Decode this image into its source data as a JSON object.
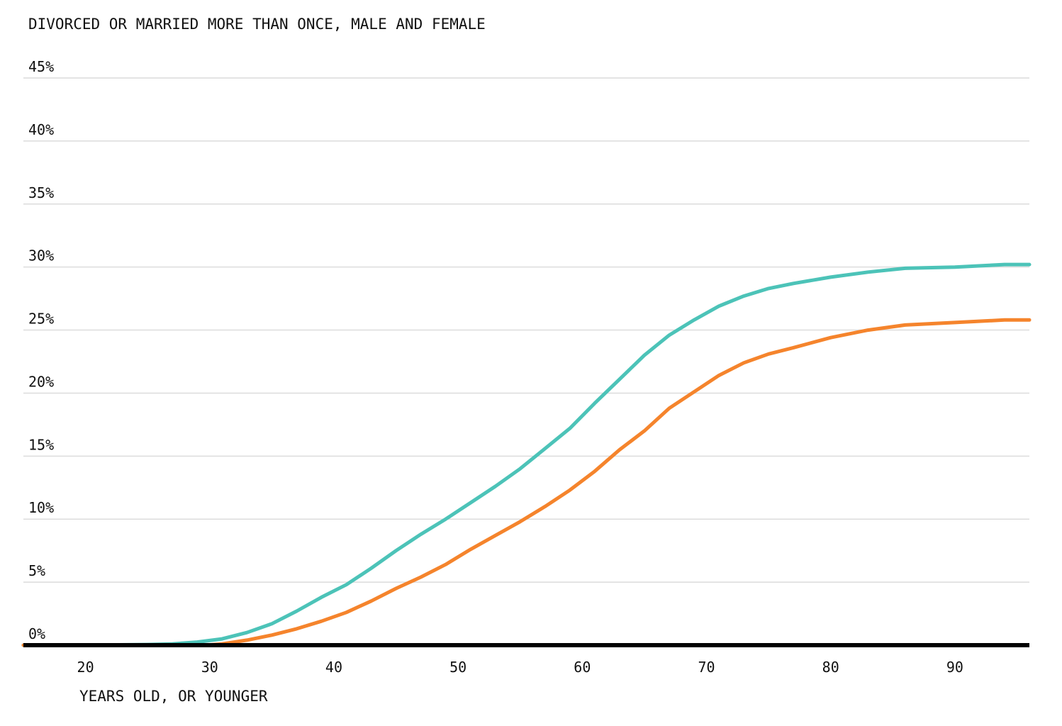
{
  "chart_data": {
    "type": "line",
    "title": "DIVORCED OR MARRIED MORE THAN ONCE, MALE AND FEMALE",
    "xlabel": "YEARS OLD, OR YOUNGER",
    "ylabel": "",
    "xlim": [
      15,
      96
    ],
    "ylim": [
      0,
      45
    ],
    "x_ticks": [
      20,
      30,
      40,
      50,
      60,
      70,
      80,
      90
    ],
    "x_tick_labels": [
      "20",
      "30",
      "40",
      "50",
      "60",
      "70",
      "80",
      "90"
    ],
    "y_ticks": [
      0,
      5,
      10,
      15,
      20,
      25,
      30,
      35,
      40,
      45
    ],
    "y_tick_labels": [
      "0%",
      "5%",
      "10%",
      "15%",
      "20%",
      "25%",
      "30%",
      "35%",
      "40%",
      "45%"
    ],
    "grid": true,
    "legend": "none",
    "series": [
      {
        "color": "#4cc3b8",
        "x": [
          15,
          20,
          25,
          27,
          29,
          31,
          33,
          35,
          37,
          39,
          41,
          43,
          45,
          47,
          49,
          51,
          53,
          55,
          57,
          59,
          61,
          63,
          65,
          67,
          69,
          71,
          73,
          75,
          77,
          80,
          83,
          86,
          90,
          94,
          96
        ],
        "y": [
          0,
          0,
          0.05,
          0.1,
          0.25,
          0.5,
          1.0,
          1.7,
          2.7,
          3.8,
          4.8,
          6.1,
          7.5,
          8.8,
          10.0,
          11.3,
          12.6,
          14.0,
          15.6,
          17.2,
          19.2,
          21.1,
          23.0,
          24.6,
          25.8,
          26.9,
          27.7,
          28.3,
          28.7,
          29.2,
          29.6,
          29.9,
          30.0,
          30.2,
          30.2
        ]
      },
      {
        "color": "#f5842c",
        "x": [
          15,
          20,
          25,
          30,
          31,
          33,
          35,
          37,
          39,
          41,
          43,
          45,
          47,
          49,
          51,
          53,
          55,
          57,
          59,
          61,
          63,
          65,
          67,
          69,
          71,
          73,
          75,
          77,
          80,
          83,
          86,
          90,
          94,
          96
        ],
        "y": [
          0,
          0,
          0,
          0.02,
          0.1,
          0.4,
          0.8,
          1.3,
          1.9,
          2.6,
          3.5,
          4.5,
          5.4,
          6.4,
          7.6,
          8.7,
          9.8,
          11.0,
          12.3,
          13.8,
          15.5,
          17.0,
          18.8,
          20.1,
          21.4,
          22.4,
          23.1,
          23.6,
          24.4,
          25.0,
          25.4,
          25.6,
          25.8,
          25.8
        ]
      }
    ]
  }
}
